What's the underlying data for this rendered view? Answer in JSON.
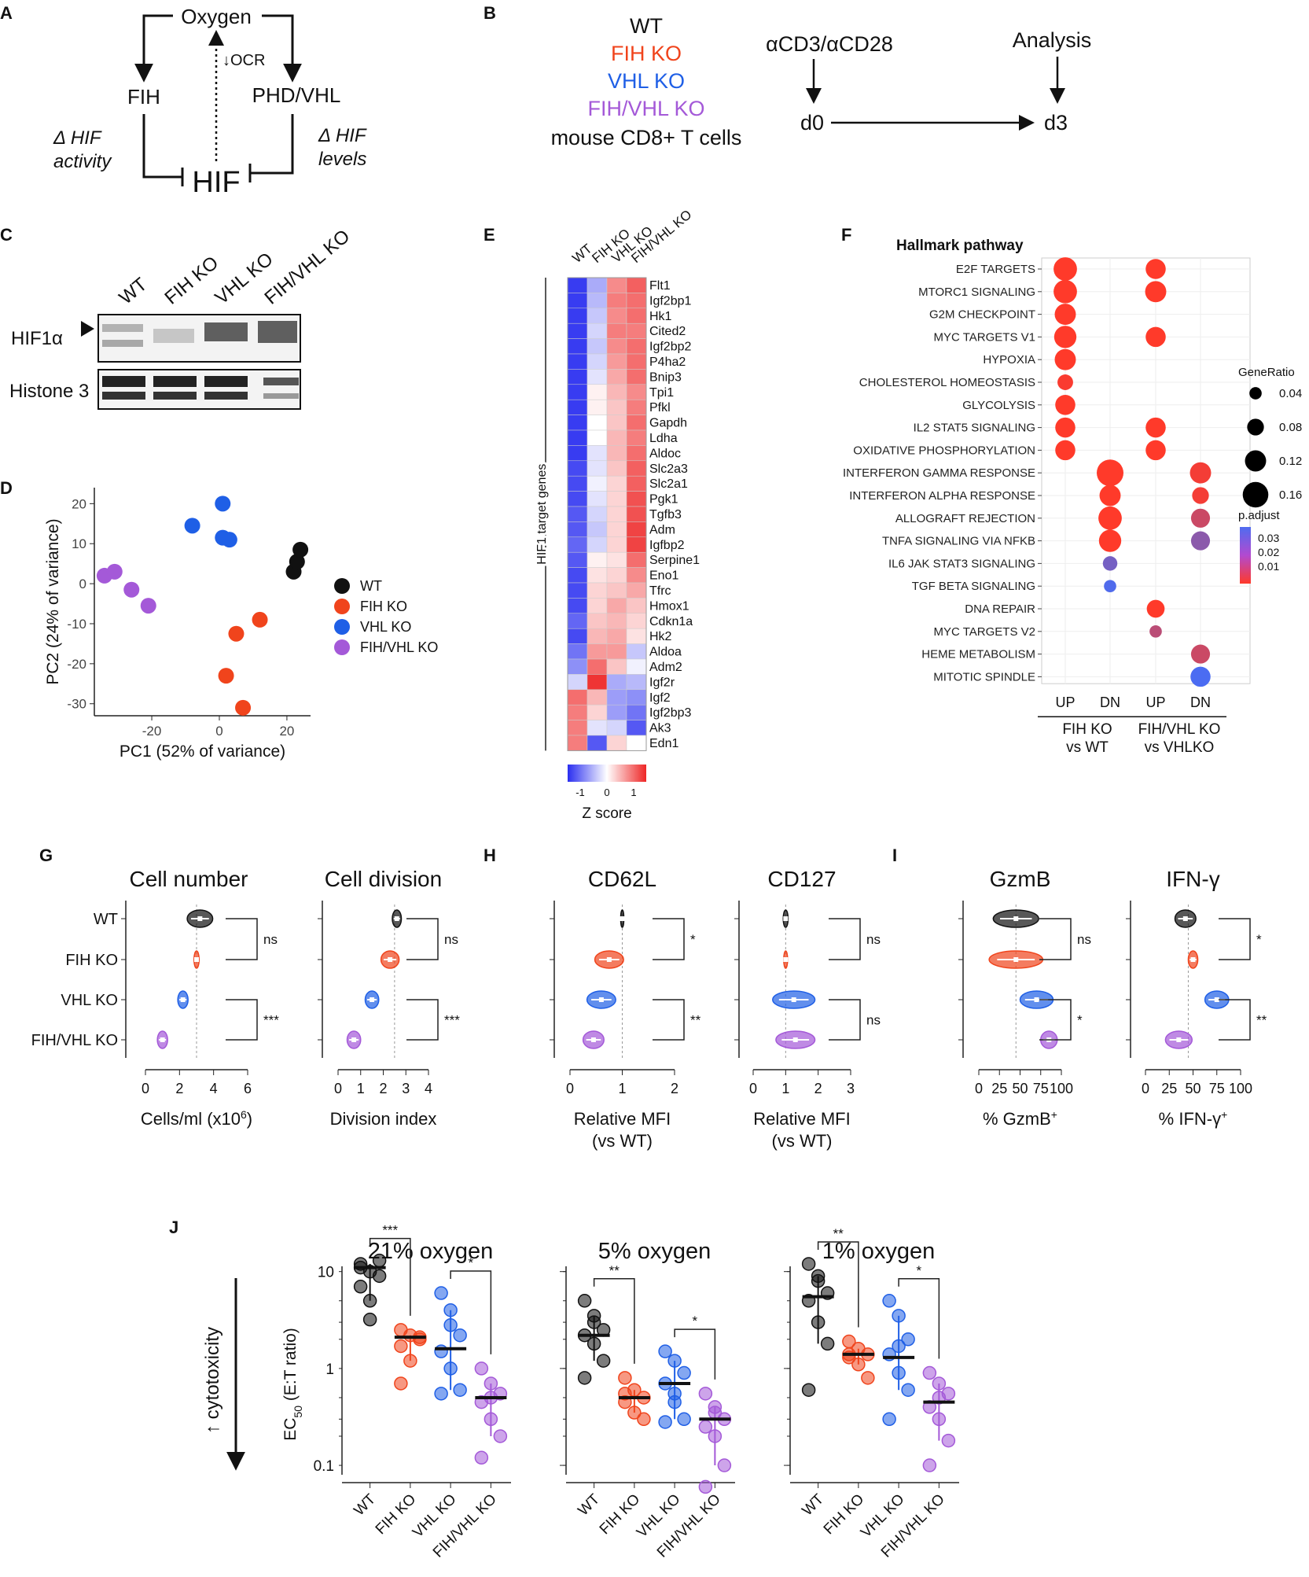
{
  "panel_letters": [
    "A",
    "B",
    "C",
    "D",
    "E",
    "F",
    "G",
    "H",
    "I",
    "J"
  ],
  "panel_a": {
    "oxygen": "Oxygen",
    "fih": "FIH",
    "phd_vhl": "PHD/VHL",
    "hif": "HIF",
    "ocr": "↓OCR",
    "delta_activity_1": "Δ HIF",
    "delta_activity_2": "activity",
    "delta_levels_1": "Δ HIF",
    "delta_levels_2": "levels"
  },
  "panel_b": {
    "lines": [
      "WT",
      "FIH KO",
      "VHL KO",
      "FIH/VHL KO",
      "mouse CD8+ T cells"
    ],
    "stim": "αCD3/αCD28",
    "analysis": "Analysis",
    "d0": "d0",
    "d3": "d3"
  },
  "panel_c": {
    "lanes": [
      "WT",
      "FIH KO",
      "VHL KO",
      "FIH/VHL KO"
    ],
    "blot1": "HIF1α",
    "blot2": "Histone 3"
  },
  "colors": {
    "WT": "#111111",
    "FIH KO": "#f0441c",
    "VHL KO": "#1f5fe6",
    "FIH/VHL KO": "#a459d8"
  },
  "chart_data": [
    {
      "panel": "D",
      "type": "scatter",
      "xlabel": "PC1 (52% of variance)",
      "ylabel": "PC2 (24% of variance)",
      "xlim": [
        -37,
        27
      ],
      "ylim": [
        -33,
        24
      ],
      "xticks": [
        -20,
        0,
        20
      ],
      "yticks": [
        20,
        10,
        0,
        -10,
        -20,
        -30
      ],
      "legend": [
        "WT",
        "FIH KO",
        "VHL KO",
        "FIH/VHL KO"
      ],
      "series": [
        {
          "name": "WT",
          "points": [
            [
              22,
              3
            ],
            [
              23,
              5.5
            ],
            [
              24,
              8.5
            ]
          ]
        },
        {
          "name": "FIH KO",
          "points": [
            [
              12,
              -9
            ],
            [
              5,
              -12.5
            ],
            [
              2,
              -23
            ],
            [
              7,
              -31
            ]
          ]
        },
        {
          "name": "VHL KO",
          "points": [
            [
              -8,
              14.5
            ],
            [
              1,
              20
            ],
            [
              1,
              11.5
            ],
            [
              3,
              11
            ]
          ]
        },
        {
          "name": "FIH/VHL KO",
          "points": [
            [
              -34,
              2
            ],
            [
              -31,
              3
            ],
            [
              -26,
              -1.5
            ],
            [
              -21,
              -5.5
            ]
          ]
        }
      ]
    },
    {
      "panel": "E",
      "type": "heatmap",
      "columns": [
        "WT",
        "FIH KO",
        "VHL KO",
        "FIH/VHL KO"
      ],
      "row_group_label": "HIF1 target genes",
      "colorbar_label": "Z score",
      "colorbar_ticks": [
        "-1",
        "0",
        "1"
      ],
      "rows": [
        "Flt1",
        "Igf2bp1",
        "Hk1",
        "Cited2",
        "Igf2bp2",
        "P4ha2",
        "Bnip3",
        "Tpi1",
        "Pfkl",
        "Gapdh",
        "Ldha",
        "Aldoc",
        "Slc2a3",
        "Slc2a1",
        "Pgk1",
        "Tgfb3",
        "Adm",
        "Igfbp2",
        "Serpine1",
        "Eno1",
        "Tfrc",
        "Hmox1",
        "Cdkn1a",
        "Hk2",
        "Aldoa",
        "Adm2",
        "Igf2r",
        "Igf2",
        "Igf2bp3",
        "Ak3",
        "Edn1"
      ],
      "values": [
        [
          -1.4,
          -0.6,
          0.8,
          1.1
        ],
        [
          -1.4,
          -0.5,
          0.9,
          1.0
        ],
        [
          -1.4,
          -0.4,
          0.8,
          1.0
        ],
        [
          -1.4,
          -0.3,
          0.9,
          0.9
        ],
        [
          -1.4,
          -0.4,
          0.8,
          1.0
        ],
        [
          -1.4,
          -0.3,
          0.7,
          1.0
        ],
        [
          -1.4,
          -0.2,
          0.6,
          1.0
        ],
        [
          -1.4,
          0.1,
          0.5,
          0.8
        ],
        [
          -1.4,
          0.1,
          0.4,
          0.9
        ],
        [
          -1.4,
          0.0,
          0.4,
          1.0
        ],
        [
          -1.4,
          0.0,
          0.5,
          0.9
        ],
        [
          -1.4,
          -0.2,
          0.5,
          1.0
        ],
        [
          -1.3,
          -0.2,
          0.4,
          1.1
        ],
        [
          -1.3,
          -0.1,
          0.3,
          1.1
        ],
        [
          -1.3,
          -0.2,
          0.3,
          1.2
        ],
        [
          -1.2,
          -0.3,
          0.3,
          1.2
        ],
        [
          -1.2,
          -0.4,
          0.3,
          1.3
        ],
        [
          -1.1,
          -0.3,
          0.3,
          1.3
        ],
        [
          -1.2,
          0.1,
          0.2,
          1.0
        ],
        [
          -1.3,
          0.2,
          0.3,
          0.8
        ],
        [
          -1.3,
          0.3,
          0.4,
          0.6
        ],
        [
          -1.3,
          0.3,
          0.6,
          0.4
        ],
        [
          -1.1,
          0.4,
          0.5,
          0.3
        ],
        [
          -1.3,
          0.5,
          0.6,
          0.2
        ],
        [
          -1.0,
          0.7,
          0.7,
          -0.4
        ],
        [
          -0.8,
          1.0,
          0.4,
          -0.1
        ],
        [
          -0.3,
          1.4,
          -0.6,
          -0.5
        ],
        [
          1.0,
          0.5,
          -0.7,
          -0.8
        ],
        [
          0.9,
          0.3,
          -0.7,
          -1.0
        ],
        [
          0.9,
          -0.2,
          -0.3,
          -1.2
        ],
        [
          0.9,
          -1.2,
          0.3,
          0.0
        ]
      ]
    },
    {
      "panel": "F",
      "type": "scatter",
      "title": "Hallmark pathway",
      "pathways": [
        "E2F TARGETS",
        "MTORC1 SIGNALING",
        "G2M CHECKPOINT",
        "MYC TARGETS V1",
        "HYPOXIA",
        "CHOLESTEROL HOMEOSTASIS",
        "GLYCOLYSIS",
        "IL2 STAT5 SIGNALING",
        "OXIDATIVE PHOSPHORYLATION",
        "INTERFERON GAMMA RESPONSE",
        "INTERFERON ALPHA RESPONSE",
        "ALLOGRAFT REJECTION",
        "TNFA SIGNALING VIA NFKB",
        "IL6 JAK STAT3 SIGNALING",
        "TGF BETA SIGNALING",
        "DNA REPAIR",
        "MYC TARGETS V2",
        "HEME METABOLISM",
        "MITOTIC SPINDLE"
      ],
      "columns": [
        "UP",
        "DN",
        "UP",
        "DN"
      ],
      "groups": [
        "FIH KO vs WT",
        "FIH/VHL KO vs VHLKO"
      ],
      "size_legend_title": "GeneRatio",
      "size_legend": [
        0.04,
        0.08,
        0.12,
        0.16
      ],
      "color_legend_title": "p.adjust",
      "color_legend": [
        "0.03",
        "0.02",
        "0.01"
      ],
      "dots": [
        {
          "row": 0,
          "col": 0,
          "ratio": 0.14,
          "padj": 0.002
        },
        {
          "row": 0,
          "col": 2,
          "ratio": 0.11,
          "padj": 0.002
        },
        {
          "row": 1,
          "col": 0,
          "ratio": 0.14,
          "padj": 0.002
        },
        {
          "row": 1,
          "col": 2,
          "ratio": 0.12,
          "padj": 0.002
        },
        {
          "row": 2,
          "col": 0,
          "ratio": 0.12,
          "padj": 0.002
        },
        {
          "row": 3,
          "col": 0,
          "ratio": 0.13,
          "padj": 0.002
        },
        {
          "row": 3,
          "col": 2,
          "ratio": 0.11,
          "padj": 0.002
        },
        {
          "row": 4,
          "col": 0,
          "ratio": 0.12,
          "padj": 0.002
        },
        {
          "row": 5,
          "col": 0,
          "ratio": 0.07,
          "padj": 0.003
        },
        {
          "row": 6,
          "col": 0,
          "ratio": 0.11,
          "padj": 0.002
        },
        {
          "row": 7,
          "col": 0,
          "ratio": 0.11,
          "padj": 0.002
        },
        {
          "row": 7,
          "col": 2,
          "ratio": 0.11,
          "padj": 0.002
        },
        {
          "row": 8,
          "col": 0,
          "ratio": 0.11,
          "padj": 0.002
        },
        {
          "row": 8,
          "col": 2,
          "ratio": 0.11,
          "padj": 0.002
        },
        {
          "row": 9,
          "col": 1,
          "ratio": 0.17,
          "padj": 0.002
        },
        {
          "row": 9,
          "col": 3,
          "ratio": 0.12,
          "padj": 0.004
        },
        {
          "row": 10,
          "col": 1,
          "ratio": 0.12,
          "padj": 0.002
        },
        {
          "row": 10,
          "col": 3,
          "ratio": 0.08,
          "padj": 0.004
        },
        {
          "row": 11,
          "col": 1,
          "ratio": 0.14,
          "padj": 0.002
        },
        {
          "row": 11,
          "col": 3,
          "ratio": 0.1,
          "padj": 0.012
        },
        {
          "row": 12,
          "col": 1,
          "ratio": 0.13,
          "padj": 0.002
        },
        {
          "row": 12,
          "col": 3,
          "ratio": 0.1,
          "padj": 0.024
        },
        {
          "row": 13,
          "col": 1,
          "ratio": 0.06,
          "padj": 0.028
        },
        {
          "row": 14,
          "col": 1,
          "ratio": 0.04,
          "padj": 0.035
        },
        {
          "row": 15,
          "col": 2,
          "ratio": 0.09,
          "padj": 0.002
        },
        {
          "row": 16,
          "col": 2,
          "ratio": 0.04,
          "padj": 0.015
        },
        {
          "row": 17,
          "col": 3,
          "ratio": 0.1,
          "padj": 0.012
        },
        {
          "row": 18,
          "col": 3,
          "ratio": 0.11,
          "padj": 0.036
        }
      ]
    },
    {
      "panel": "G-I",
      "type": "violin",
      "row_labels": [
        "WT",
        "FIH KO",
        "VHL KO",
        "FIH/VHL KO"
      ],
      "plots": [
        {
          "title": "Cell number",
          "xlabel": "Cells/ml (x10",
          "xlabel_sup": "6",
          "xlabel_end": ")",
          "xlim": [
            0,
            6
          ],
          "xticks": [
            0,
            2,
            4,
            6
          ],
          "ref": 3.0,
          "medians": [
            3.2,
            3.0,
            2.2,
            1.0
          ],
          "spreads": [
            1.5,
            0.3,
            0.6,
            0.6
          ],
          "sig": [
            {
              "a": 0,
              "b": 1,
              "label": "ns"
            },
            {
              "a": 2,
              "b": 3,
              "label": "***"
            }
          ]
        },
        {
          "title": "Cell division",
          "xlabel": "Division index",
          "xlabel_sup": "",
          "xlabel_end": "",
          "xlim": [
            0,
            4
          ],
          "xticks": [
            0,
            1,
            2,
            3,
            4
          ],
          "ref": 2.5,
          "medians": [
            2.6,
            2.3,
            1.5,
            0.7
          ],
          "spreads": [
            0.4,
            0.8,
            0.6,
            0.6
          ],
          "sig": [
            {
              "a": 0,
              "b": 1,
              "label": "ns"
            },
            {
              "a": 2,
              "b": 3,
              "label": "***"
            }
          ]
        },
        {
          "title": "CD62L",
          "xlabel": "Relative MFI",
          "xlabel2": "(vs WT)",
          "xlim": [
            0,
            2
          ],
          "xticks": [
            0,
            1,
            2
          ],
          "ref": 1.0,
          "medians": [
            1.0,
            0.75,
            0.6,
            0.45
          ],
          "spreads": [
            0.06,
            0.55,
            0.55,
            0.4
          ],
          "sig": [
            {
              "a": 0,
              "b": 1,
              "label": "*"
            },
            {
              "a": 2,
              "b": 3,
              "label": "**"
            }
          ]
        },
        {
          "title": "CD127",
          "xlabel": "Relative MFI",
          "xlabel2": "(vs WT)",
          "xlim": [
            0,
            3
          ],
          "xticks": [
            0,
            1,
            2,
            3
          ],
          "ref": 1.0,
          "medians": [
            1.0,
            1.0,
            1.25,
            1.3
          ],
          "spreads": [
            0.15,
            0.12,
            1.3,
            1.2
          ],
          "sig": [
            {
              "a": 0,
              "b": 1,
              "label": "ns"
            },
            {
              "a": 2,
              "b": 3,
              "label": "ns"
            }
          ]
        },
        {
          "title": "GzmB",
          "xlabel": "% GzmB",
          "xlabel_sup": "+",
          "xlim": [
            0,
            100
          ],
          "xticks": [
            0,
            25,
            50,
            75,
            100
          ],
          "ref": 45,
          "medians": [
            45,
            45,
            70,
            85
          ],
          "spreads": [
            55,
            65,
            40,
            20
          ],
          "sig": [
            {
              "a": 0,
              "b": 1,
              "label": "ns"
            },
            {
              "a": 2,
              "b": 3,
              "label": "*"
            }
          ]
        },
        {
          "title": "IFN-γ",
          "xlabel": "% IFN-γ",
          "xlabel_sup": "+",
          "xlim": [
            0,
            100
          ],
          "xticks": [
            0,
            25,
            50,
            75,
            100
          ],
          "ref": 45,
          "medians": [
            42,
            50,
            75,
            35
          ],
          "spreads": [
            22,
            10,
            25,
            28
          ],
          "sig": [
            {
              "a": 0,
              "b": 1,
              "label": "*"
            },
            {
              "a": 2,
              "b": 3,
              "label": "**"
            }
          ]
        }
      ]
    },
    {
      "panel": "J",
      "type": "scatter",
      "ylabel": "EC",
      "ylabel_sub": "50",
      "ylabel_end": " (E:T ratio)",
      "side_label": "↑ cytotoxicity",
      "yscale": "log",
      "ylim": [
        0.08,
        15
      ],
      "yticks": [
        "10",
        "1",
        "0.1"
      ],
      "groups": [
        "WT",
        "FIH KO",
        "VHL KO",
        "FIH/VHL KO"
      ],
      "plots": [
        {
          "title": "21% oxygen",
          "medians": [
            11,
            2.1,
            1.6,
            0.5
          ],
          "points": [
            [
              12,
              10,
              9,
              7,
              5,
              13,
              11,
              3.2
            ],
            [
              2.5,
              2.2,
              2.0,
              1.7,
              1.2,
              2.1,
              0.7
            ],
            [
              6,
              4,
              2.2,
              1.5,
              1.0,
              0.6,
              0.55,
              2.8
            ],
            [
              1.0,
              0.7,
              0.55,
              0.45,
              0.3,
              0.2,
              0.12,
              0.5
            ]
          ],
          "sig": [
            {
              "a": 0,
              "b": 1,
              "label": "***"
            },
            {
              "a": 2,
              "b": 3,
              "label": "*"
            }
          ]
        },
        {
          "title": "5% oxygen",
          "medians": [
            2.2,
            0.5,
            0.7,
            0.3
          ],
          "points": [
            [
              5,
              3.5,
              2.5,
              2.2,
              1.8,
              1.2,
              0.8,
              3.0
            ],
            [
              0.8,
              0.6,
              0.5,
              0.45,
              0.35,
              0.3,
              0.55
            ],
            [
              1.5,
              1.2,
              0.9,
              0.7,
              0.45,
              0.3,
              0.28,
              0.55
            ],
            [
              0.55,
              0.35,
              0.3,
              0.25,
              0.2,
              0.1,
              0.06,
              0.4
            ]
          ],
          "sig": [
            {
              "a": 0,
              "b": 1,
              "label": "**"
            },
            {
              "a": 2,
              "b": 3,
              "label": "*"
            }
          ]
        },
        {
          "title": "1% oxygen",
          "medians": [
            5.5,
            1.4,
            1.3,
            0.45
          ],
          "points": [
            [
              12,
              9,
              6,
              5,
              3,
              1.8,
              0.6,
              8
            ],
            [
              1.9,
              1.6,
              1.4,
              1.3,
              1.1,
              0.8,
              1.4
            ],
            [
              5,
              3.5,
              2,
              1.4,
              0.9,
              0.6,
              0.3,
              1.7
            ],
            [
              0.9,
              0.7,
              0.55,
              0.4,
              0.3,
              0.18,
              0.1,
              0.5
            ]
          ],
          "sig": [
            {
              "a": 0,
              "b": 1,
              "label": "**"
            },
            {
              "a": 2,
              "b": 3,
              "label": "*"
            }
          ]
        }
      ]
    }
  ]
}
